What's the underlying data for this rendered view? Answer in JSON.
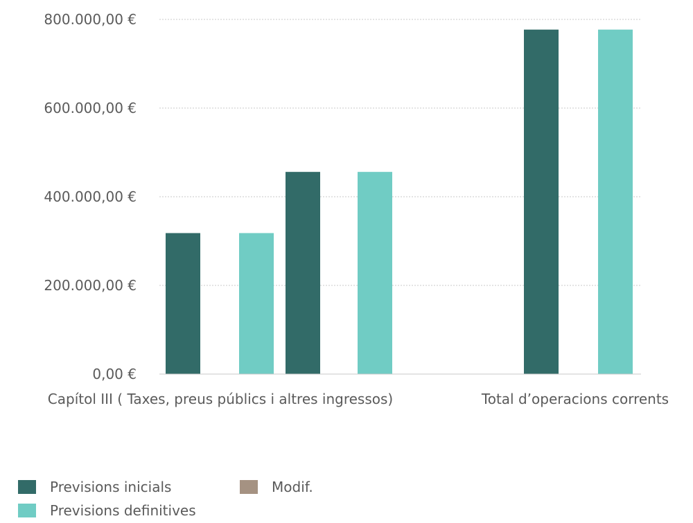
{
  "chart_data": {
    "type": "bar",
    "categories": [
      "Capítol III ( Taxes, preus públics i altres ingressos)",
      "Total d’operacions corrents"
    ],
    "series": [
      {
        "name": "Previsions inicials",
        "color": "#326b68",
        "values": [
          318000,
          777000
        ]
      },
      {
        "name": "Previsions definitives",
        "color": "#70ccc4",
        "values": [
          318000,
          777000
        ]
      },
      {
        "name": "Previsions inicials",
        "color": "#326b68",
        "values": [
          456000,
          null
        ]
      },
      {
        "name": "Previsions definitives",
        "color": "#70ccc4",
        "values": [
          456000,
          null
        ]
      }
    ],
    "yticks": [
      0,
      200000,
      400000,
      600000,
      800000
    ],
    "ytick_labels": [
      "0,00 €",
      "200.000,00 €",
      "400.000,00 €",
      "600.000,00 €",
      "800.000,00 €"
    ],
    "ylim": [
      0,
      800000
    ],
    "grid": true,
    "legend_position": "bottom-left",
    "legend": [
      {
        "name": "Previsions inicials",
        "color": "#326b68"
      },
      {
        "name": "Modif.",
        "color": "#a59282"
      },
      {
        "name": "Previsions definitives",
        "color": "#70ccc4"
      }
    ]
  }
}
